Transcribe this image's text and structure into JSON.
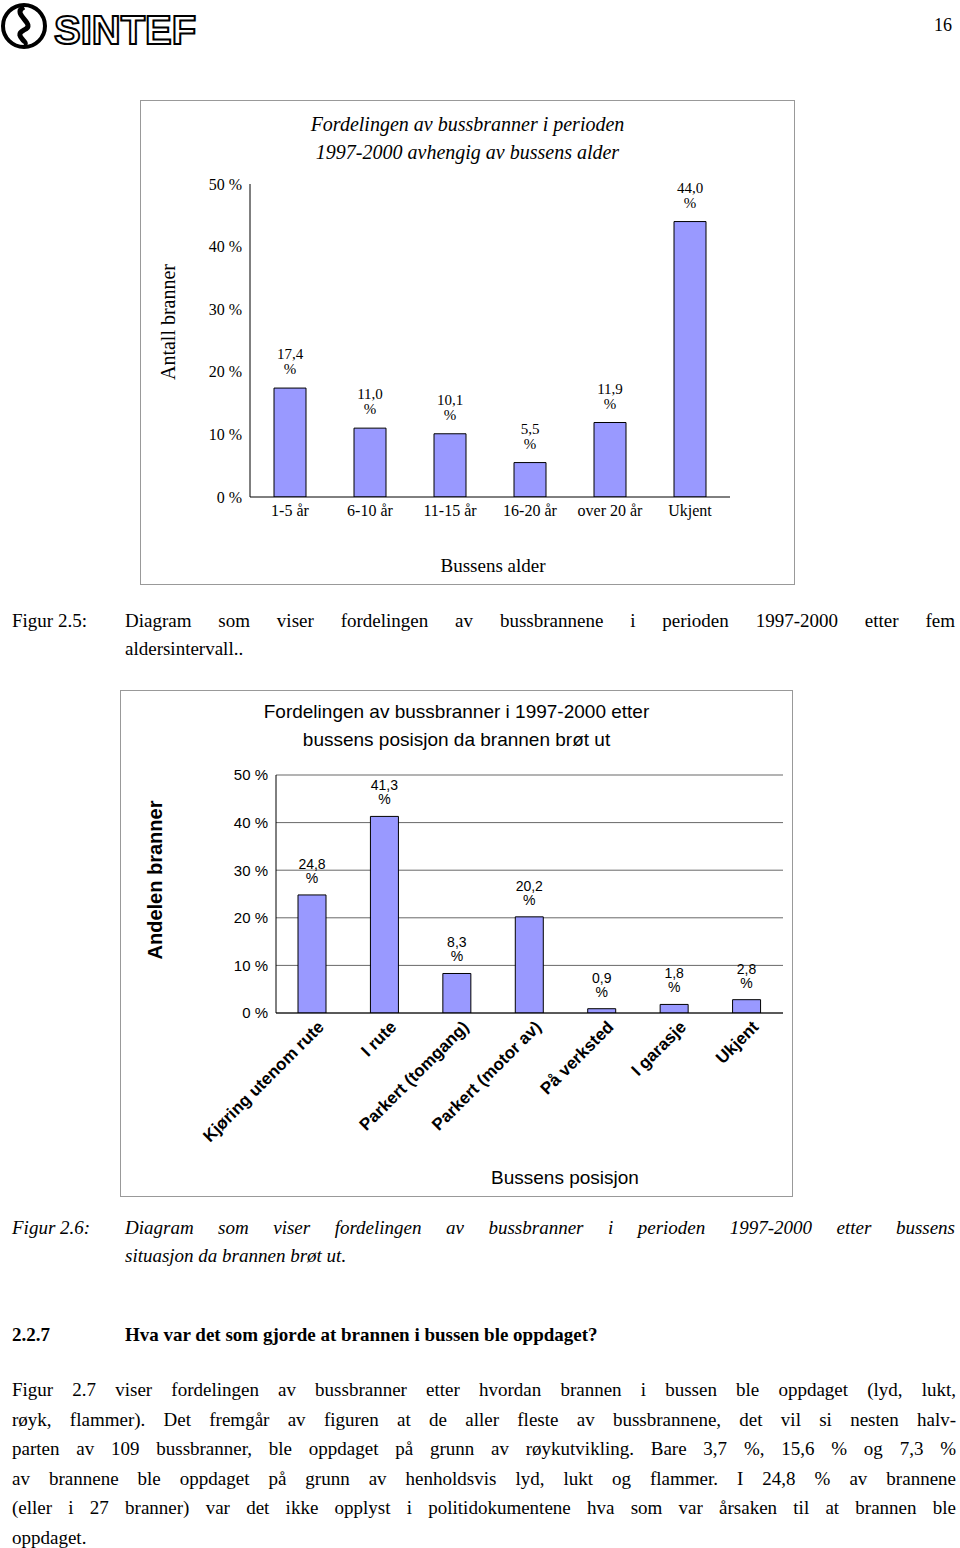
{
  "header": {
    "logo": "SINTEF",
    "page": "16"
  },
  "chart_data": [
    {
      "type": "bar",
      "title": "Fordelingen av bussbranner i perioden\n1997-2000 avhengig av bussens alder",
      "x_label": "Bussens alder",
      "y_label": "Antall branner",
      "categories": [
        "1-5 år",
        "6-10 år",
        "11-15 år",
        "16-20 år",
        "over 20 år",
        "Ukjent"
      ],
      "values": [
        17.4,
        11.0,
        10.1,
        5.5,
        11.9,
        44.0
      ],
      "value_labels": [
        "17,4 %",
        "11,0 %",
        "10,1 %",
        "5,5 %",
        "11,9 %",
        "44,0 %"
      ],
      "data_labels": true,
      "color": "#9999ff",
      "ylim": [
        0,
        50
      ],
      "yticks": [
        {
          "value": 0,
          "label": "0 %"
        },
        {
          "value": 10,
          "label": "10 %"
        },
        {
          "value": 20,
          "label": "20 %"
        },
        {
          "value": 30,
          "label": "30 %"
        },
        {
          "value": 40,
          "label": "40 %"
        },
        {
          "value": 50,
          "label": "50 %"
        }
      ],
      "grid": false
    },
    {
      "type": "bar",
      "title": "Fordelingen av bussbranner i 1997-2000 etter\nbussens posisjon da brannen brøt ut",
      "x_label": "Bussens posisjon",
      "y_label": "Andelen branner",
      "categories": [
        "Kjøring utenom rute",
        "I rute",
        "Parkert (tomgang)",
        "Parkert (motor av)",
        "På verksted",
        "I garasje",
        "Ukjent"
      ],
      "values": [
        24.8,
        41.3,
        8.3,
        20.2,
        0.9,
        1.8,
        2.8
      ],
      "value_labels": [
        "24,8 %",
        "41,3 %",
        "8,3 %",
        "20,2 %",
        "0,9 %",
        "1,8 %",
        "2,8 %"
      ],
      "data_labels": true,
      "color": "#9999ff",
      "ylim": [
        0,
        50
      ],
      "yticks": [
        {
          "value": 0,
          "label": "0 %"
        },
        {
          "value": 10,
          "label": "10 %"
        },
        {
          "value": 20,
          "label": "20 %"
        },
        {
          "value": 30,
          "label": "30 %"
        },
        {
          "value": 40,
          "label": "40 %"
        },
        {
          "value": 50,
          "label": "50 %"
        }
      ],
      "grid": true
    }
  ],
  "captions": [
    {
      "label": "Figur 2.5:",
      "lines": [
        "Diagram som viser fordelingen av bussbrannene i perioden 1997-2000 etter fem",
        "aldersintervall.."
      ]
    },
    {
      "label": "Figur 2.6:",
      "lines": [
        "Diagram som viser fordelingen av bussbranner i perioden 1997-2000 etter bussens",
        "situasjon da brannen brøt ut."
      ]
    }
  ],
  "section": {
    "number": "2.2.7",
    "title": "Hva var det som gjorde at brannen i bussen ble oppdaget?"
  },
  "paragraph": [
    "Figur 2.7 viser fordelingen av bussbranner etter hvordan brannen i bussen ble oppdaget (lyd, lukt,",
    "røyk, flammer). Det fremgår av figuren at de aller fleste av bussbrannene, det vil si nesten halv-",
    "parten av 109 bussbranner, ble oppdaget på grunn av røykutvikling. Bare 3,7 %, 15,6 % og 7,3 %",
    "av brannene ble oppdaget på grunn av henholdsvis lyd, lukt og flammer. I 24,8 % av brannene",
    "(eller i 27 branner) var det ikke opplyst i politidokumentene hva som var årsaken til at brannen ble",
    "oppdaget."
  ]
}
